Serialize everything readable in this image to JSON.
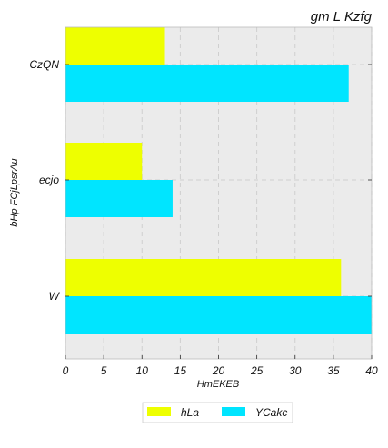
{
  "chart_data": {
    "type": "bar",
    "orientation": "horizontal",
    "title": "gm L  Kzfg",
    "xlabel": "HmEKEB",
    "ylabel": "bHp FCjLpsrAu",
    "categories": [
      "CzQN",
      "ecjo",
      "W"
    ],
    "series": [
      {
        "name": "hLa",
        "values": [
          13,
          10,
          36
        ],
        "color": "#eeff00"
      },
      {
        "name": "YCakc",
        "values": [
          37,
          14,
          40
        ],
        "color": "#00e5ff"
      }
    ],
    "xlim": [
      0,
      40
    ],
    "xticks": [
      0,
      5,
      10,
      15,
      20,
      25,
      30,
      35,
      40
    ],
    "grid": true,
    "legend_position": "bottom-center",
    "background_color": "#ebebeb"
  }
}
